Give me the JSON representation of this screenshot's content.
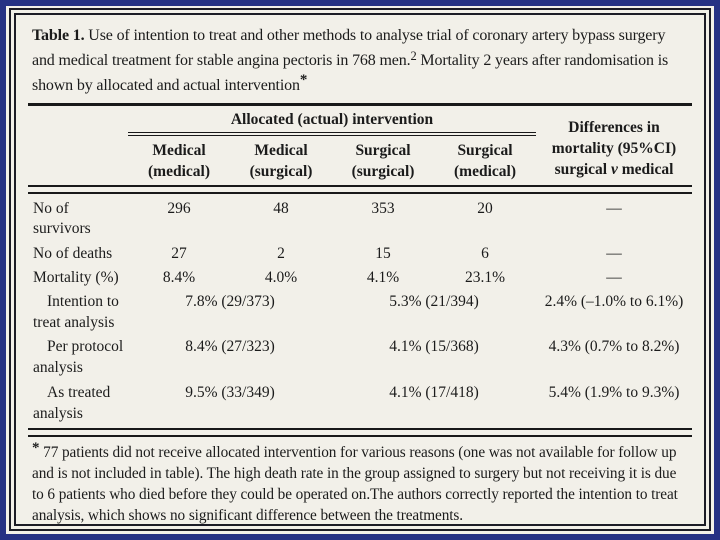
{
  "colors": {
    "background": "#253184",
    "paper": "#f2f0e9",
    "ink": "#1b1b1b"
  },
  "caption": {
    "label": "Table 1.",
    "text_a": " Use of intention to treat and other methods to analyse trial of coronary artery bypass surgery and medical treatment for stable angina pectoris in 768 men.",
    "ref_superscript": "2",
    "text_b": " Mortality 2 years after randomisation is shown by allocated and actual intervention",
    "note_marker": "*"
  },
  "header": {
    "spanner": "Allocated (actual) intervention",
    "columns": [
      {
        "line1": "Medical",
        "line2": "(medical)"
      },
      {
        "line1": "Medical",
        "line2": "(surgical)"
      },
      {
        "line1": "Surgical",
        "line2": "(surgical)"
      },
      {
        "line1": "Surgical",
        "line2": "(medical)"
      }
    ],
    "diff": {
      "line1": "Differences in",
      "line2": "mortality (95%CI)",
      "line3_a": "surgical ",
      "line3_v": "v",
      "line3_b": " medical"
    }
  },
  "rows": {
    "survivors": {
      "label_line1": "No of",
      "label_line2": "survivors",
      "v1": "296",
      "v2": "48",
      "v3": "353",
      "v4": "20",
      "diff": "—"
    },
    "deaths": {
      "label_line1": "No of deaths",
      "v1": "27",
      "v2": "2",
      "v3": "15",
      "v4": "6",
      "diff": "—"
    },
    "mortality": {
      "label_line1": "Mortality (%)",
      "v1": "8.4%",
      "v2": "4.0%",
      "v3": "4.1%",
      "v4": "23.1%",
      "diff": "—"
    },
    "intention": {
      "label_line1": "Intention to",
      "label_line2": "treat analysis",
      "medical": "7.8% (29/373)",
      "surgical": "5.3% (21/394)",
      "diff": "2.4% (–1.0% to 6.1%)"
    },
    "per_protocol": {
      "label_line1": "Per protocol",
      "label_line2": "analysis",
      "medical": "8.4% (27/323)",
      "surgical": "4.1% (15/368)",
      "diff": "4.3% (0.7% to 8.2%)"
    },
    "as_treated": {
      "label_line1": "As treated",
      "label_line2": "analysis",
      "medical": "9.5% (33/349)",
      "surgical": "4.1% (17/418)",
      "diff": "5.4% (1.9% to 9.3%)"
    }
  },
  "footnote": {
    "marker": "*",
    "text": "77 patients did not receive allocated intervention for various reasons (one was not available for follow up and is not included in table). The high death rate in the group assigned to surgery but not receiving it is due to 6 patients who died before they could be operated on.The authors correctly reported the intention to treat analysis, which shows no significant difference between the treatments."
  }
}
